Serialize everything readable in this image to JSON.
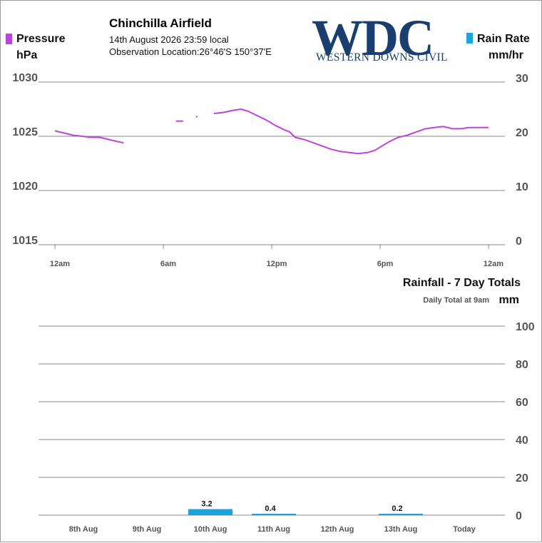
{
  "header": {
    "station": "Chinchilla Airfield",
    "datetime": "14th August 2026  23:59 local",
    "location": "Observation Location:26°46'S 150°37'E"
  },
  "logo": {
    "letters": "WDC",
    "tagline": "WESTERN DOWNS CIVIL"
  },
  "colors": {
    "pressure": "#bb44dd",
    "rain": "#1aa3dd",
    "grid": "#888888",
    "axis_text": "#555555"
  },
  "chart_data": [
    {
      "type": "line",
      "xlabel": "",
      "ylabel": "hPa",
      "y2label_name": "Rain Rate",
      "y2label": "mm/hr",
      "xlim": [
        0,
        24
      ],
      "x_ticks": [
        0,
        6,
        12,
        18,
        24
      ],
      "x_tick_labels": [
        "12am",
        "6am",
        "12pm",
        "6pm",
        "12am"
      ],
      "ylim": [
        1015,
        1030
      ],
      "y_ticks": [
        1015,
        1020,
        1025,
        1030
      ],
      "y2lim": [
        0,
        30
      ],
      "y2_ticks": [
        0,
        10,
        20,
        30
      ],
      "grid": true,
      "series": [
        {
          "name": "Pressure",
          "axis": "left",
          "segments": [
            [
              [
                0.0,
                1025.5
              ],
              [
                0.5,
                1025.3
              ],
              [
                1.0,
                1025.1
              ],
              [
                1.5,
                1025.0
              ],
              [
                2.0,
                1024.9
              ],
              [
                2.5,
                1024.9
              ],
              [
                3.0,
                1024.7
              ],
              [
                3.5,
                1024.5
              ],
              [
                3.8,
                1024.4
              ]
            ],
            [
              [
                6.7,
                1026.4
              ],
              [
                7.1,
                1026.4
              ]
            ],
            [
              [
                7.8,
                1026.8
              ],
              [
                7.9,
                1026.8
              ]
            ],
            [
              [
                8.8,
                1027.1
              ],
              [
                9.3,
                1027.2
              ],
              [
                9.9,
                1027.4
              ],
              [
                10.3,
                1027.5
              ],
              [
                10.7,
                1027.3
              ],
              [
                11.2,
                1026.9
              ],
              [
                11.7,
                1026.5
              ],
              [
                12.2,
                1026.0
              ],
              [
                12.7,
                1025.6
              ],
              [
                13.0,
                1025.4
              ],
              [
                13.3,
                1024.9
              ],
              [
                13.8,
                1024.7
              ],
              [
                14.3,
                1024.4
              ],
              [
                14.8,
                1024.1
              ],
              [
                15.3,
                1023.8
              ],
              [
                15.8,
                1023.6
              ],
              [
                16.3,
                1023.5
              ],
              [
                16.8,
                1023.4
              ],
              [
                17.3,
                1023.5
              ],
              [
                17.7,
                1023.7
              ],
              [
                18.0,
                1024.0
              ],
              [
                18.5,
                1024.5
              ],
              [
                19.0,
                1024.9
              ],
              [
                19.5,
                1025.1
              ],
              [
                20.0,
                1025.4
              ],
              [
                20.5,
                1025.7
              ],
              [
                21.0,
                1025.8
              ],
              [
                21.5,
                1025.9
              ],
              [
                22.0,
                1025.7
              ],
              [
                22.5,
                1025.7
              ],
              [
                22.9,
                1025.8
              ],
              [
                23.2,
                1025.8
              ],
              [
                24.0,
                1025.8
              ]
            ]
          ]
        },
        {
          "name": "Rain Rate",
          "axis": "right",
          "values": []
        }
      ]
    },
    {
      "type": "bar",
      "title": "Rainfall - 7 Day Totals",
      "subtitle": "Daily Total at 9am",
      "ylabel": "mm",
      "ylim": [
        0,
        100
      ],
      "y_ticks": [
        0,
        20,
        40,
        60,
        80,
        100
      ],
      "grid": true,
      "categories": [
        "8th Aug",
        "9th Aug",
        "10th Aug",
        "11th Aug",
        "12th Aug",
        "13th Aug",
        "Today"
      ],
      "values": [
        0,
        0,
        3.2,
        0.4,
        0,
        0.2,
        0
      ],
      "value_labels": [
        "",
        "",
        "3.2",
        "0.4",
        "",
        "0.2",
        ""
      ]
    }
  ]
}
